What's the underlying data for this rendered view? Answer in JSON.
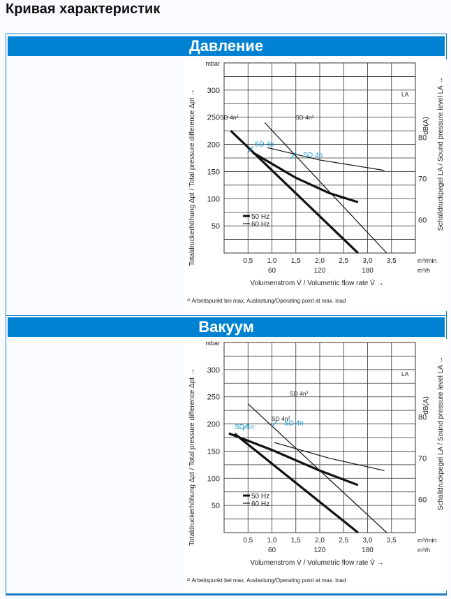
{
  "page_title": "Кривая характеристик",
  "sections": [
    {
      "title": "Давление"
    },
    {
      "title": "Вакуум"
    }
  ],
  "colors": {
    "accent": "#0082d2",
    "marker": "#1a9ad6"
  },
  "chart_data": [
    {
      "type": "line",
      "title": "Давление",
      "xlabel": "Volumenstrom V̇ / Volumetric flow rate V̇ →",
      "ylabel": "Totaldruckerhöhung Δpt / Total pressure difference Δpt →",
      "y2label": "Schalldruckpegel LA / Sound pressure level LA →",
      "y_unit": "mbar",
      "y2_unit": "dB(A)",
      "x_unit": "m³/min",
      "x2_unit": "m³/h",
      "xlim": [
        0,
        4.0
      ],
      "ylim": [
        0,
        350
      ],
      "y2lim": [
        52,
        98
      ],
      "x_ticks": [
        "0,5",
        "1,0",
        "1,5",
        "2,0",
        "2,5",
        "3,0",
        "3,5"
      ],
      "x2_ticks": [
        "60",
        "120",
        "180"
      ],
      "y_ticks": [
        "50",
        "100",
        "150",
        "200",
        "250",
        "300"
      ],
      "y2_ticks": [
        "60",
        "70",
        "80"
      ],
      "grid": true,
      "legend": [
        "50 Hz",
        "60 Hz"
      ],
      "series": [
        {
          "name": "50 Hz",
          "axis": "pressure",
          "points": [
            [
              0.14,
              225
            ],
            [
              2.8,
              0
            ]
          ]
        },
        {
          "name": "60 Hz",
          "axis": "pressure",
          "points": [
            [
              0.85,
              240
            ],
            [
              3.4,
              0
            ]
          ]
        },
        {
          "name": "LA 50 Hz",
          "axis": "sound",
          "points": [
            [
              0.6,
              76.3
            ],
            [
              1.5,
              70.2
            ],
            [
              2.2,
              66.5
            ],
            [
              2.8,
              64.3
            ]
          ]
        },
        {
          "name": "LA 60 Hz",
          "axis": "sound",
          "points": [
            [
              0.9,
              77.5
            ],
            [
              2.0,
              74.5
            ],
            [
              3.35,
              72
            ]
          ]
        }
      ],
      "markers": [
        {
          "label": "SD 4n",
          "x": 0.55,
          "y": 190
        },
        {
          "label": "SD 4n",
          "x": 1.45,
          "y": 180
        }
      ],
      "annotations": [
        "SD 4n²",
        "SD 4n²",
        "LA"
      ],
      "footnote": "²⁾ Arbeitspunkt bei max. Auslastung/Operating point at max. load"
    },
    {
      "type": "line",
      "title": "Вакуум",
      "xlabel": "Volumenstrom V̇ / Volumetric flow rate V̇ →",
      "ylabel": "Totaldruckerhöhung Δpt / Total pressure difference Δpt →",
      "y2label": "Schalldruckpegel LA / Sound pressure level LA →",
      "y_unit": "mbar",
      "y2_unit": "dB(A)",
      "x_unit": "m³/min",
      "x2_unit": "m³/h",
      "xlim": [
        0,
        4.0
      ],
      "ylim": [
        0,
        350
      ],
      "y2lim": [
        52,
        98
      ],
      "x_ticks": [
        "0,5",
        "1,0",
        "1,5",
        "2,0",
        "2,5",
        "3,0",
        "3,5"
      ],
      "x2_ticks": [
        "60",
        "120",
        "180"
      ],
      "y_ticks": [
        "50",
        "100",
        "150",
        "200",
        "250",
        "300"
      ],
      "y2_ticks": [
        "60",
        "70",
        "80"
      ],
      "grid": true,
      "legend": [
        "50 Hz",
        "60 Hz"
      ],
      "series": [
        {
          "name": "50 Hz",
          "axis": "pressure",
          "points": [
            [
              0.22,
              182
            ],
            [
              2.8,
              0
            ]
          ]
        },
        {
          "name": "60 Hz",
          "axis": "pressure",
          "points": [
            [
              0.5,
              237
            ],
            [
              3.4,
              0
            ]
          ]
        },
        {
          "name": "LA 50 Hz",
          "axis": "sound",
          "points": [
            [
              0.1,
              76
            ],
            [
              1.0,
              72
            ],
            [
              2.0,
              67
            ],
            [
              2.8,
              63.5
            ]
          ]
        },
        {
          "name": "LA 60 Hz",
          "axis": "sound",
          "points": [
            [
              1.05,
              73.8
            ],
            [
              2.2,
              70
            ],
            [
              3.35,
              67
            ]
          ]
        }
      ],
      "markers": [
        {
          "label": "SD 4n",
          "x": 1.05,
          "y": 200
        },
        {
          "label": "SD 4n",
          "x": 0.45,
          "y": 195
        }
      ],
      "annotations": [
        "SD 4n²",
        "SD 4n²",
        "LA"
      ],
      "footnote": "²⁾ Arbeitspunkt bei max. Auslastung/Operating point at max. load"
    }
  ]
}
